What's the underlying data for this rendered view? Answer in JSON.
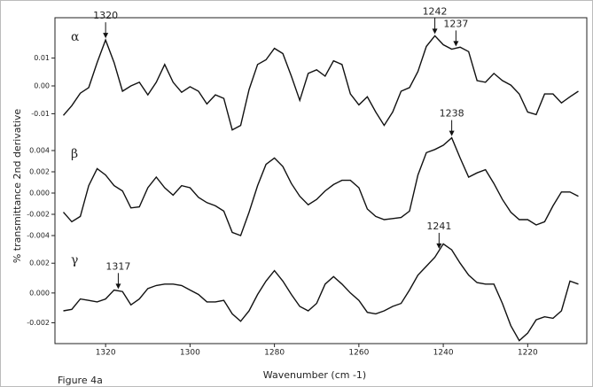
{
  "chart_data": {
    "type": "line",
    "caption": "Figure 4a",
    "xlabel": "Wavenumber (cm -1)",
    "ylabel": "% transmittance 2nd derivative",
    "xlim": [
      1332,
      1206
    ],
    "xticks": [
      1320,
      1300,
      1280,
      1260,
      1240,
      1220
    ],
    "color": "#111111",
    "x": [
      1330,
      1328,
      1326,
      1324,
      1322,
      1320,
      1318,
      1316,
      1314,
      1312,
      1310,
      1308,
      1306,
      1304,
      1302,
      1300,
      1298,
      1296,
      1294,
      1292,
      1290,
      1288,
      1286,
      1284,
      1282,
      1280,
      1278,
      1276,
      1274,
      1272,
      1270,
      1268,
      1266,
      1264,
      1262,
      1260,
      1258,
      1256,
      1254,
      1252,
      1250,
      1248,
      1246,
      1244,
      1242,
      1240,
      1238,
      1236,
      1234,
      1232,
      1230,
      1228,
      1226,
      1224,
      1222,
      1220,
      1218,
      1216,
      1214,
      1212,
      1210,
      1208
    ],
    "panels": [
      {
        "label": "α",
        "ylim": [
          -0.0175,
          0.0245
        ],
        "yticks": [
          0.01,
          {
            "value": 0,
            "label": "0.00"
          },
          -0.01
        ],
        "values": [
          -0.0106,
          -0.0071,
          -0.0026,
          -0.0006,
          0.0084,
          0.0165,
          0.0084,
          -0.0019,
          0,
          0.0013,
          -0.0032,
          0.0013,
          0.0077,
          0.0013,
          -0.0023,
          -0.0003,
          -0.0019,
          -0.0065,
          -0.0032,
          -0.0045,
          -0.0158,
          -0.0142,
          -0.0013,
          0.0077,
          0.0094,
          0.0135,
          0.0116,
          0.0035,
          -0.0052,
          0.0045,
          0.0058,
          0.0035,
          0.009,
          0.0077,
          -0.0029,
          -0.0068,
          -0.0039,
          -0.0094,
          -0.0142,
          -0.0094,
          -0.0019,
          -0.0006,
          0.0052,
          0.0142,
          0.018,
          0.0148,
          0.0132,
          0.0139,
          0.0123,
          0.0019,
          0.0013,
          0.0045,
          0.0019,
          0.0003,
          -0.0029,
          -0.0094,
          -0.0103,
          -0.0029,
          -0.0029,
          -0.0061,
          -0.0039,
          -0.0019
        ],
        "annotations": [
          {
            "x": 1320
          },
          {
            "x": 1242
          },
          {
            "x": 1237
          }
        ]
      },
      {
        "label": "β",
        "ylim": [
          -0.0045,
          0.0055
        ],
        "yticks": [
          0.004,
          0.002,
          {
            "value": 0,
            "label": "0.000"
          },
          -0.002,
          -0.004
        ],
        "values": [
          -0.0018,
          -0.0027,
          -0.0022,
          0.0007,
          0.0023,
          0.0017,
          0.0007,
          0.0002,
          -0.0014,
          -0.0013,
          0.0005,
          0.0015,
          0.0005,
          -0.0002,
          0.0007,
          0.0005,
          -0.0004,
          -0.0009,
          -0.0012,
          -0.0017,
          -0.0037,
          -0.004,
          -0.0018,
          0.0007,
          0.0027,
          0.0033,
          0.0025,
          0.0009,
          -0.0003,
          -0.0011,
          -0.0006,
          0.0002,
          0.0008,
          0.0012,
          0.0012,
          0.0005,
          -0.0015,
          -0.0022,
          -0.0025,
          -0.0024,
          -0.0023,
          -0.0017,
          0.0017,
          0.0038,
          0.0041,
          0.0045,
          0.0052,
          0.0033,
          0.0015,
          0.0019,
          0.0022,
          0.0009,
          -0.0006,
          -0.0018,
          -0.0025,
          -0.0025,
          -0.003,
          -0.0027,
          -0.0012,
          0.0001,
          0.0001,
          -0.0003
        ],
        "annotations": [
          {
            "x": 1238
          }
        ]
      },
      {
        "label": "γ",
        "ylim": [
          -0.0034,
          0.0035
        ],
        "yticks": [
          0.002,
          {
            "value": 0,
            "label": "0.000"
          },
          -0.002
        ],
        "values": [
          -0.0012,
          -0.0011,
          -0.0004,
          -0.0005,
          -0.0006,
          -0.0004,
          0.0002,
          0.0001,
          -0.0008,
          -0.0004,
          0.0003,
          0.0005,
          0.0006,
          0.0006,
          0.0005,
          0.0002,
          -0.0001,
          -0.0006,
          -0.0006,
          -0.0005,
          -0.0014,
          -0.0019,
          -0.0012,
          -0.0001,
          0.0008,
          0.0015,
          0.0008,
          -0.0001,
          -0.0009,
          -0.0012,
          -0.0007,
          0.0006,
          0.0011,
          0.0006,
          0,
          -0.0005,
          -0.0013,
          -0.0014,
          -0.0012,
          -0.0009,
          -0.0007,
          0.0002,
          0.0012,
          0.0018,
          0.0024,
          0.0033,
          0.0029,
          0.002,
          0.0012,
          0.0007,
          0.0006,
          0.0006,
          -0.0007,
          -0.0022,
          -0.0032,
          -0.0027,
          -0.0018,
          -0.0016,
          -0.0017,
          -0.0012,
          0.0008,
          0.0006
        ],
        "annotations": [
          {
            "x": 1241
          },
          {
            "x": 1317
          }
        ]
      }
    ]
  }
}
